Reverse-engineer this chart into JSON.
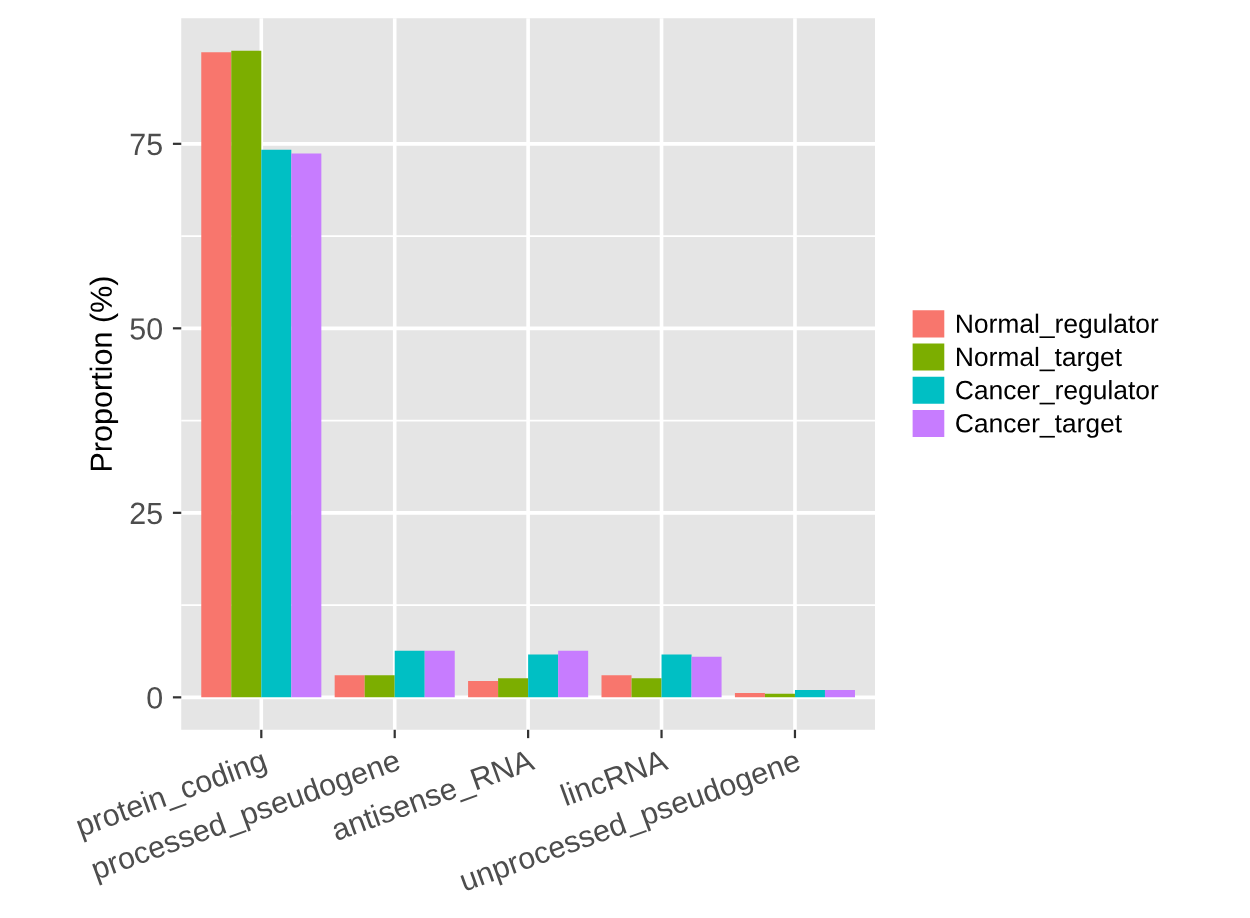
{
  "chart_data": {
    "type": "bar",
    "ylabel": "Proportion (%)",
    "categories": [
      "protein_coding",
      "processed_pseudogene",
      "antisense_RNA",
      "lincRNA",
      "unprocessed_pseudogene"
    ],
    "series": [
      {
        "name": "Normal_regulator",
        "color": "#f8766d",
        "values": [
          87.4,
          3.0,
          2.2,
          3.0,
          0.6
        ]
      },
      {
        "name": "Normal_target",
        "color": "#7cae00",
        "values": [
          87.6,
          3.0,
          2.6,
          2.6,
          0.5
        ]
      },
      {
        "name": "Cancer_regulator",
        "color": "#00bfc4",
        "values": [
          74.2,
          6.3,
          5.8,
          5.8,
          1.0
        ]
      },
      {
        "name": "Cancer_target",
        "color": "#c77cff",
        "values": [
          73.7,
          6.3,
          6.3,
          5.5,
          1.0
        ]
      }
    ],
    "ylim": [
      -4.4,
      92
    ],
    "yticks": [
      0,
      25,
      50,
      75
    ],
    "grid": true,
    "legend": "right"
  }
}
